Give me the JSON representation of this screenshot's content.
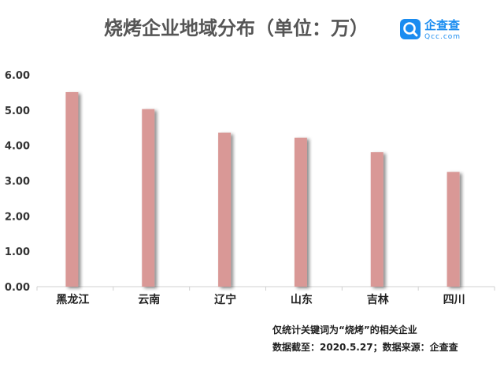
{
  "chart_data": {
    "type": "bar",
    "title": "烧烤企业地域分布（单位：万）",
    "categories": [
      "黑龙江",
      "云南",
      "辽宁",
      "山东",
      "吉林",
      "四川"
    ],
    "values": [
      5.51,
      5.03,
      4.36,
      4.22,
      3.81,
      3.25
    ],
    "ylim": [
      0,
      6
    ],
    "yticks": [
      "0.00",
      "1.00",
      "2.00",
      "3.00",
      "4.00",
      "5.00",
      "6.00"
    ],
    "grid": false,
    "legend": "none",
    "bar_color": "#d99896",
    "notes": [
      "仅统计关键词为“烧烤”的相关企业",
      "数据截至：2020.5.27；数据来源：企查查"
    ]
  },
  "logo": {
    "name": "企查查",
    "sub": "Qcc.com",
    "color": "#1a8cf0"
  }
}
